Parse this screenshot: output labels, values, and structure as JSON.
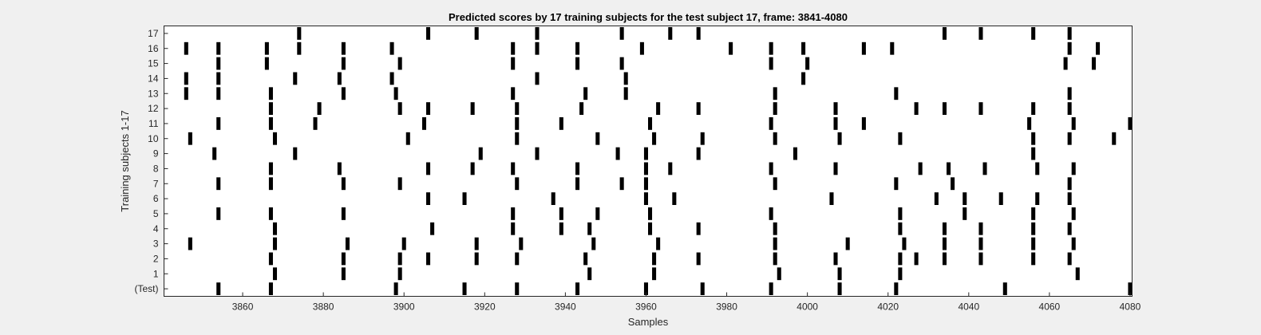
{
  "chart_data": {
    "type": "raster",
    "title": "Predicted scores by 17 training subjects for the test subject 17, frame: 3841-4080",
    "xlabel": "Samples",
    "ylabel": "Training subjects 1-17",
    "xlim": [
      3841,
      4080
    ],
    "x_ticks": [
      3860,
      3880,
      3900,
      3920,
      3940,
      3960,
      3980,
      4000,
      4020,
      4040,
      4060,
      4080
    ],
    "y_tick_labels": [
      "(Test)",
      "1",
      "2",
      "3",
      "4",
      "5",
      "6",
      "7",
      "8",
      "9",
      "10",
      "11",
      "12",
      "13",
      "14",
      "15",
      "16",
      "17"
    ],
    "grid": false,
    "rows": [
      {
        "label": "(Test)",
        "events": [
          3854,
          3867,
          3898,
          3915,
          3928,
          3943,
          3960,
          3974,
          3991,
          4008,
          4022,
          4049,
          4080
        ]
      },
      {
        "label": "1",
        "events": [
          3868,
          3885,
          3899,
          3946,
          3962,
          3993,
          4008,
          4023,
          4067
        ]
      },
      {
        "label": "2",
        "events": [
          3867,
          3885,
          3899,
          3906,
          3918,
          3928,
          3945,
          3962,
          3973,
          3992,
          4007,
          4023,
          4027,
          4034,
          4043,
          4056,
          4065
        ]
      },
      {
        "label": "3",
        "events": [
          3847,
          3868,
          3886,
          3900,
          3918,
          3929,
          3947,
          3963,
          3992,
          4010,
          4024,
          4034,
          4043,
          4056,
          4066
        ]
      },
      {
        "label": "4",
        "events": [
          3868,
          3907,
          3927,
          3939,
          3946,
          3961,
          3973,
          3992,
          4023,
          4034,
          4043,
          4056,
          4065
        ]
      },
      {
        "label": "5",
        "events": [
          3854,
          3867,
          3885,
          3927,
          3939,
          3948,
          3961,
          3991,
          4023,
          4039,
          4056,
          4066
        ]
      },
      {
        "label": "6",
        "events": [
          3906,
          3915,
          3937,
          3960,
          3967,
          4006,
          4032,
          4039,
          4048,
          4057,
          4065
        ]
      },
      {
        "label": "7",
        "events": [
          3854,
          3867,
          3885,
          3899,
          3928,
          3943,
          3954,
          3960,
          3992,
          4022,
          4036,
          4065
        ]
      },
      {
        "label": "8",
        "events": [
          3867,
          3884,
          3906,
          3917,
          3927,
          3943,
          3960,
          3966,
          3991,
          4007,
          4028,
          4035,
          4044,
          4057,
          4066
        ]
      },
      {
        "label": "9",
        "events": [
          3853,
          3873,
          3919,
          3933,
          3953,
          3960,
          3973,
          3997,
          4056
        ]
      },
      {
        "label": "10",
        "events": [
          3847,
          3868,
          3901,
          3928,
          3948,
          3962,
          3974,
          3992,
          4008,
          4023,
          4056,
          4065,
          4076
        ]
      },
      {
        "label": "11",
        "events": [
          3854,
          3867,
          3878,
          3905,
          3928,
          3939,
          3961,
          3991,
          4007,
          4014,
          4055,
          4066,
          4080
        ]
      },
      {
        "label": "12",
        "events": [
          3867,
          3879,
          3899,
          3906,
          3917,
          3928,
          3944,
          3963,
          3973,
          3992,
          4007,
          4027,
          4034,
          4043,
          4056,
          4065
        ]
      },
      {
        "label": "13",
        "events": [
          3846,
          3854,
          3867,
          3885,
          3898,
          3927,
          3945,
          3955,
          3992,
          4022,
          4065
        ]
      },
      {
        "label": "14",
        "events": [
          3846,
          3854,
          3873,
          3884,
          3897,
          3933,
          3955,
          3999
        ]
      },
      {
        "label": "15",
        "events": [
          3854,
          3866,
          3885,
          3899,
          3927,
          3943,
          3954,
          3991,
          4000,
          4064,
          4071
        ]
      },
      {
        "label": "16",
        "events": [
          3846,
          3854,
          3866,
          3874,
          3885,
          3897,
          3927,
          3933,
          3943,
          3959,
          3981,
          3991,
          3999,
          4014,
          4021,
          4065,
          4072
        ]
      },
      {
        "label": "17",
        "events": [
          3874,
          3906,
          3918,
          3933,
          3954,
          3966,
          3973,
          4034,
          4043,
          4056,
          4065
        ]
      }
    ]
  }
}
